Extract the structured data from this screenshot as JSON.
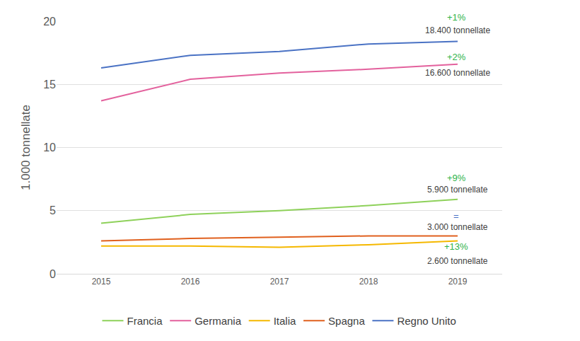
{
  "chart_data": {
    "type": "line",
    "y_label": "1.000 tonnellate",
    "categories": [
      "2015",
      "2016",
      "2017",
      "2018",
      "2019"
    ],
    "series": [
      {
        "name": "Francia",
        "color": "#8ed15a",
        "line_style": "solid",
        "values": [
          4.0,
          4.7,
          5.0,
          5.4,
          5.9
        ],
        "change": "+9%",
        "change_color": "#2eb34a",
        "end_label": "5.900 tonnellate"
      },
      {
        "name": "Germania",
        "color": "#e3619d",
        "line_style": "solid",
        "values": [
          13.7,
          15.4,
          15.9,
          16.2,
          16.6
        ],
        "change": "+2%",
        "change_color": "#2eb34a",
        "end_label": "16.600 tonnellate"
      },
      {
        "name": "Italia",
        "color": "#f5b800",
        "line_style": "solid",
        "values": [
          2.2,
          2.2,
          2.1,
          2.3,
          2.6
        ],
        "change": "+13%",
        "change_color": "#2eb34a",
        "end_label": "2.600 tonnellate"
      },
      {
        "name": "Spagna",
        "color": "#e0601e",
        "line_style": "solid",
        "values": [
          2.6,
          2.8,
          2.9,
          3.0,
          3.0
        ],
        "change": "=",
        "change_color": "#4a72c4",
        "end_label": "3.000 tonnellate"
      },
      {
        "name": "Regno Unito",
        "color": "#4a72c4",
        "line_style": "solid",
        "values": [
          16.3,
          17.3,
          17.6,
          18.2,
          18.4
        ],
        "change": "+1%",
        "change_color": "#2eb34a",
        "end_label": "18.400 tonnellate"
      }
    ],
    "ylim": [
      0,
      20
    ],
    "yticks": [
      0,
      5,
      10,
      15,
      20
    ],
    "grid": true,
    "legend": "bottom"
  }
}
